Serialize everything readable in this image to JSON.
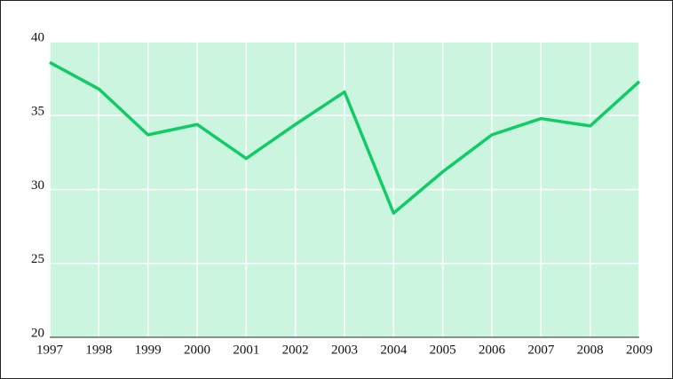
{
  "chart_data": {
    "type": "line",
    "categories": [
      "1997",
      "1998",
      "1999",
      "2000",
      "2001",
      "2002",
      "2003",
      "2004",
      "2005",
      "2006",
      "2007",
      "2008",
      "2009"
    ],
    "series": [
      {
        "color": "#11cc66",
        "values": [
          38.6,
          36.8,
          33.7,
          34.4,
          32.1,
          34.4,
          36.6,
          28.4,
          31.2,
          33.7,
          34.8,
          34.3,
          37.3
        ]
      }
    ],
    "ylim": [
      20,
      40
    ],
    "yticks": [
      20,
      25,
      30,
      35,
      40
    ],
    "grid": true,
    "background": "#ccf5e0"
  }
}
